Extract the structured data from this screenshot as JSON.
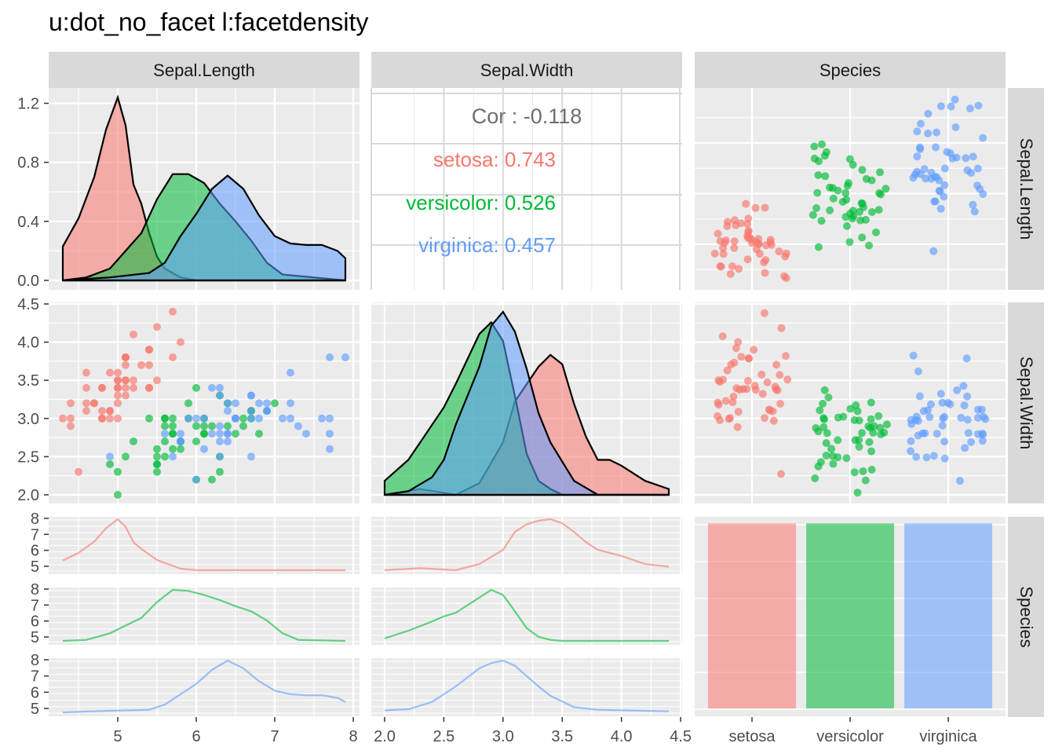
{
  "title": "u:dot_no_facet l:facetdensity",
  "colors": {
    "panel_bg": "#EBEBEB",
    "grid": "#FFFFFF",
    "strip_bg": "#D9D9D9",
    "setosa": "#F8766D",
    "versicolor": "#00BA38",
    "virginica": "#619CFF",
    "cor_text": "#6E6E6E",
    "tick_text": "#4D4D4D"
  },
  "chart_data": {
    "type": "scatter",
    "variables": [
      "Sepal.Length",
      "Sepal.Width",
      "Species"
    ],
    "species": [
      "setosa",
      "versicolor",
      "virginica"
    ],
    "axes": {
      "sepal_length": {
        "range": [
          4.3,
          7.9
        ],
        "ticks": [
          "5",
          "6",
          "7",
          "8"
        ]
      },
      "sepal_width": {
        "range": [
          2.0,
          4.4
        ],
        "ticks": [
          "2.0",
          "2.5",
          "3.0",
          "3.5",
          "4.0",
          "4.5"
        ]
      },
      "density_y": {
        "range": [
          0.0,
          1.24
        ],
        "ticks": [
          "0.0",
          "0.4",
          "0.8",
          "1.2"
        ]
      },
      "sepal_width_y_ticks": [
        "2.0",
        "2.5",
        "3.0",
        "3.5",
        "4.0",
        "4.5"
      ],
      "mini_density_ticks": [
        "5",
        "6",
        "7",
        "8"
      ],
      "species_ticks": [
        "setosa",
        "versicolor",
        "virginica"
      ]
    },
    "correlation": {
      "overall_label": "Cor : -0.118",
      "groups": [
        {
          "label": "setosa: 0.743",
          "species": "setosa",
          "value": 0.743
        },
        {
          "label": "versicolor: 0.526",
          "species": "versicolor",
          "value": 0.526
        },
        {
          "label": "virginica: 0.457",
          "species": "virginica",
          "value": 0.457
        }
      ]
    },
    "density_sepal_length": [
      {
        "name": "setosa",
        "x": [
          4.3,
          4.5,
          4.7,
          4.85,
          5.0,
          5.1,
          5.2,
          5.3,
          5.4,
          5.5,
          5.6,
          5.8,
          6.0,
          6.5,
          7.0,
          7.9
        ],
        "y": [
          0.23,
          0.42,
          0.7,
          1.02,
          1.24,
          1.05,
          0.65,
          0.52,
          0.32,
          0.16,
          0.08,
          0.02,
          0.0,
          0.0,
          0.0,
          0.0
        ]
      },
      {
        "name": "versicolor",
        "x": [
          4.3,
          4.6,
          4.9,
          5.1,
          5.3,
          5.5,
          5.7,
          5.9,
          6.1,
          6.3,
          6.5,
          6.7,
          6.9,
          7.1,
          7.9
        ],
        "y": [
          0.0,
          0.02,
          0.08,
          0.2,
          0.32,
          0.55,
          0.72,
          0.72,
          0.66,
          0.52,
          0.4,
          0.27,
          0.12,
          0.04,
          0.0
        ]
      },
      {
        "name": "virginica",
        "x": [
          4.3,
          4.9,
          5.4,
          5.6,
          5.8,
          6.0,
          6.2,
          6.4,
          6.6,
          6.8,
          7.0,
          7.2,
          7.4,
          7.6,
          7.8,
          7.9
        ],
        "y": [
          0.0,
          0.02,
          0.05,
          0.12,
          0.3,
          0.45,
          0.62,
          0.71,
          0.62,
          0.44,
          0.3,
          0.25,
          0.24,
          0.24,
          0.2,
          0.15
        ]
      }
    ],
    "density_sepal_width": [
      {
        "name": "setosa",
        "x": [
          2.0,
          2.3,
          2.6,
          2.8,
          3.0,
          3.1,
          3.2,
          3.3,
          3.4,
          3.5,
          3.6,
          3.7,
          3.8,
          3.9,
          4.0,
          4.2,
          4.4
        ],
        "y": [
          0.0,
          0.05,
          0.0,
          0.1,
          0.45,
          0.8,
          0.95,
          1.1,
          1.2,
          1.12,
          0.78,
          0.5,
          0.3,
          0.3,
          0.25,
          0.12,
          0.05
        ]
      },
      {
        "name": "versicolor",
        "x": [
          2.0,
          2.2,
          2.3,
          2.5,
          2.6,
          2.8,
          2.9,
          3.0,
          3.1,
          3.2,
          3.3,
          3.4,
          3.5,
          4.4
        ],
        "y": [
          0.12,
          0.3,
          0.45,
          0.75,
          0.95,
          1.38,
          1.48,
          1.32,
          0.85,
          0.35,
          0.12,
          0.05,
          0.0,
          0.0
        ]
      },
      {
        "name": "virginica",
        "x": [
          2.0,
          2.2,
          2.4,
          2.5,
          2.6,
          2.8,
          2.9,
          3.0,
          3.1,
          3.2,
          3.3,
          3.4,
          3.6,
          3.8,
          4.0,
          4.4
        ],
        "y": [
          0.0,
          0.03,
          0.15,
          0.3,
          0.6,
          1.1,
          1.45,
          1.57,
          1.4,
          1.08,
          0.7,
          0.45,
          0.12,
          0.0,
          0.0,
          0.0
        ]
      }
    ],
    "scatter_sepal_length_vs_sepal_width": [
      {
        "name": "setosa",
        "x": [
          5.1,
          4.9,
          4.7,
          4.6,
          5.0,
          5.4,
          4.6,
          5.0,
          4.4,
          4.9,
          5.4,
          4.8,
          4.8,
          4.3,
          5.8,
          5.7,
          5.4,
          5.1,
          5.7,
          5.1,
          5.4,
          5.1,
          4.6,
          5.1,
          4.8,
          5.0,
          5.0,
          5.2,
          5.2,
          4.7,
          4.8,
          5.4,
          5.2,
          5.5,
          4.9,
          5.0,
          5.5,
          4.9,
          4.4,
          5.1,
          5.0,
          4.5,
          4.4,
          5.0,
          5.1,
          4.8,
          5.1,
          4.6,
          5.3,
          5.0
        ],
        "y": [
          3.5,
          3.0,
          3.2,
          3.1,
          3.6,
          3.9,
          3.4,
          3.4,
          2.9,
          3.1,
          3.7,
          3.4,
          3.0,
          3.0,
          4.0,
          4.4,
          3.9,
          3.5,
          3.8,
          3.8,
          3.4,
          3.7,
          3.6,
          3.3,
          3.4,
          3.0,
          3.4,
          3.5,
          3.4,
          3.2,
          3.1,
          3.4,
          4.1,
          4.2,
          3.1,
          3.2,
          3.5,
          3.6,
          3.0,
          3.4,
          3.5,
          2.3,
          3.2,
          3.5,
          3.8,
          3.0,
          3.8,
          3.2,
          3.7,
          3.3
        ]
      },
      {
        "name": "versicolor",
        "x": [
          7.0,
          6.4,
          6.9,
          5.5,
          6.5,
          5.7,
          6.3,
          4.9,
          6.6,
          5.2,
          5.0,
          5.9,
          6.0,
          6.1,
          5.6,
          6.7,
          5.6,
          5.8,
          6.2,
          5.6,
          5.9,
          6.1,
          6.3,
          6.1,
          6.4,
          6.6,
          6.8,
          6.7,
          6.0,
          5.7,
          5.5,
          5.5,
          5.8,
          6.0,
          5.4,
          6.0,
          6.7,
          6.3,
          5.6,
          5.5,
          5.5,
          6.1,
          5.8,
          5.0,
          5.6,
          5.7,
          5.7,
          6.2,
          5.1,
          5.7
        ],
        "y": [
          3.2,
          3.2,
          3.1,
          2.3,
          2.8,
          2.8,
          3.3,
          2.4,
          2.9,
          2.7,
          2.0,
          3.0,
          2.2,
          2.9,
          2.9,
          3.1,
          3.0,
          2.7,
          2.2,
          2.5,
          3.2,
          2.8,
          2.5,
          2.8,
          2.9,
          3.0,
          2.8,
          3.0,
          2.9,
          2.6,
          2.4,
          2.4,
          2.7,
          2.7,
          3.0,
          3.4,
          3.1,
          2.3,
          3.0,
          2.5,
          2.6,
          3.0,
          2.6,
          2.3,
          2.7,
          3.0,
          2.9,
          2.9,
          2.5,
          2.8
        ]
      },
      {
        "name": "virginica",
        "x": [
          6.3,
          5.8,
          7.1,
          6.3,
          6.5,
          7.6,
          4.9,
          7.3,
          6.7,
          7.2,
          6.5,
          6.4,
          6.8,
          5.7,
          5.8,
          6.4,
          6.5,
          7.7,
          7.7,
          6.0,
          6.9,
          5.6,
          7.7,
          6.3,
          6.7,
          7.2,
          6.2,
          6.1,
          6.4,
          7.2,
          7.4,
          7.9,
          6.4,
          6.3,
          6.1,
          7.7,
          6.3,
          6.4,
          6.0,
          6.9,
          6.7,
          6.9,
          5.8,
          6.8,
          6.7,
          6.7,
          6.3,
          6.5,
          6.2,
          5.9
        ],
        "y": [
          3.3,
          2.7,
          3.0,
          2.9,
          3.0,
          3.0,
          2.5,
          2.9,
          2.5,
          3.6,
          3.2,
          2.7,
          3.0,
          2.5,
          2.8,
          3.2,
          3.0,
          3.8,
          2.6,
          2.2,
          3.2,
          2.8,
          2.8,
          2.7,
          3.3,
          3.2,
          2.8,
          3.0,
          2.8,
          3.0,
          2.8,
          3.8,
          2.8,
          2.8,
          2.6,
          3.0,
          3.4,
          3.1,
          3.0,
          3.1,
          3.1,
          3.1,
          2.7,
          3.2,
          3.3,
          3.0,
          2.5,
          3.0,
          3.4,
          3.0
        ]
      }
    ],
    "mini_density_sepal_length": [
      {
        "name": "setosa",
        "x": [
          4.3,
          4.5,
          4.7,
          4.85,
          5.0,
          5.1,
          5.2,
          5.3,
          5.5,
          5.8,
          6.0,
          7.9
        ],
        "y": [
          0.19,
          0.34,
          0.56,
          0.82,
          1.0,
          0.85,
          0.55,
          0.42,
          0.2,
          0.03,
          0.0,
          0.0
        ]
      },
      {
        "name": "versicolor",
        "x": [
          4.3,
          4.6,
          4.9,
          5.1,
          5.3,
          5.5,
          5.7,
          5.9,
          6.1,
          6.3,
          6.5,
          6.7,
          6.9,
          7.1,
          7.3,
          7.9
        ],
        "y": [
          0.0,
          0.02,
          0.15,
          0.3,
          0.45,
          0.76,
          1.0,
          0.98,
          0.9,
          0.8,
          0.68,
          0.58,
          0.4,
          0.15,
          0.02,
          0.0
        ]
      },
      {
        "name": "virginica",
        "x": [
          4.3,
          4.9,
          5.4,
          5.6,
          5.8,
          6.0,
          6.2,
          6.4,
          6.6,
          6.8,
          7.0,
          7.2,
          7.4,
          7.6,
          7.8,
          7.9
        ],
        "y": [
          0.0,
          0.03,
          0.05,
          0.15,
          0.35,
          0.55,
          0.82,
          1.0,
          0.85,
          0.6,
          0.42,
          0.35,
          0.33,
          0.33,
          0.28,
          0.2
        ]
      }
    ],
    "mini_density_sepal_width": [
      {
        "name": "setosa",
        "x": [
          2.0,
          2.3,
          2.6,
          2.8,
          3.0,
          3.1,
          3.2,
          3.3,
          3.4,
          3.5,
          3.6,
          3.7,
          3.8,
          4.0,
          4.2,
          4.4
        ],
        "y": [
          0.0,
          0.04,
          0.0,
          0.12,
          0.4,
          0.75,
          0.9,
          0.97,
          1.0,
          0.92,
          0.75,
          0.55,
          0.4,
          0.28,
          0.12,
          0.07
        ]
      },
      {
        "name": "versicolor",
        "x": [
          2.0,
          2.2,
          2.4,
          2.5,
          2.6,
          2.8,
          2.9,
          3.0,
          3.1,
          3.2,
          3.3,
          3.4,
          3.5,
          4.4
        ],
        "y": [
          0.05,
          0.2,
          0.38,
          0.48,
          0.55,
          0.85,
          1.0,
          0.9,
          0.58,
          0.25,
          0.08,
          0.02,
          0.0,
          0.0
        ]
      },
      {
        "name": "virginica",
        "x": [
          2.0,
          2.2,
          2.4,
          2.5,
          2.6,
          2.8,
          2.9,
          3.0,
          3.1,
          3.2,
          3.3,
          3.4,
          3.6,
          3.8,
          4.0,
          4.4
        ],
        "y": [
          0.04,
          0.06,
          0.2,
          0.35,
          0.5,
          0.85,
          0.95,
          1.0,
          0.9,
          0.7,
          0.5,
          0.32,
          0.1,
          0.05,
          0.04,
          0.02
        ]
      }
    ],
    "bar_species": {
      "categories": [
        "setosa",
        "versicolor",
        "virginica"
      ],
      "values": [
        50,
        50,
        50
      ]
    }
  }
}
